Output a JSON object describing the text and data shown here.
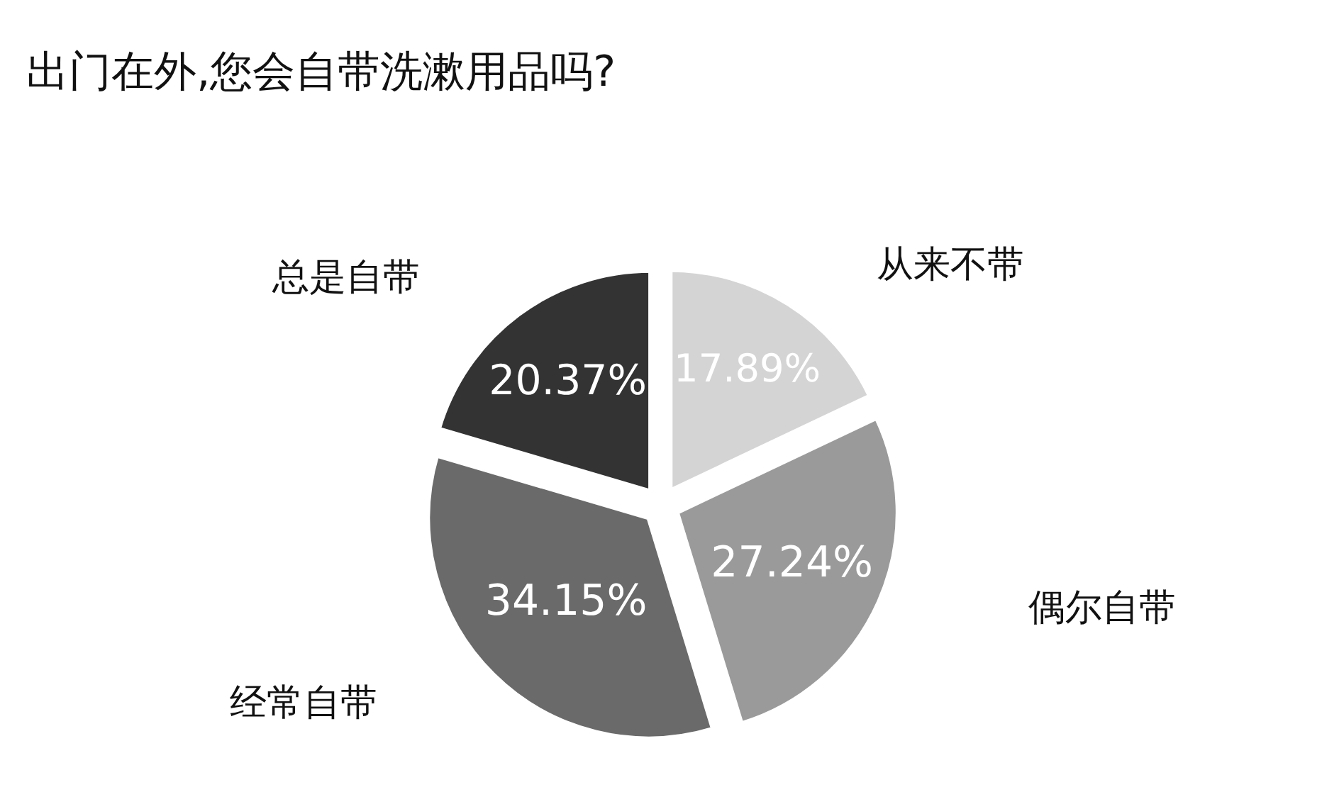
{
  "chart_data": {
    "type": "pie",
    "title": "出门在外,您会自带洗漱用品吗?",
    "categories": [
      "从来不带",
      "偶尔自带",
      "经常自带",
      "总是自带"
    ],
    "values": [
      17.89,
      27.24,
      34.15,
      20.37
    ],
    "colors": [
      "#d4d4d4",
      "#9a9a9a",
      "#6a6a6a",
      "#333333"
    ],
    "value_labels": [
      "17.89%",
      "27.24%",
      "34.15%",
      "20.37%"
    ],
    "legend": false
  }
}
